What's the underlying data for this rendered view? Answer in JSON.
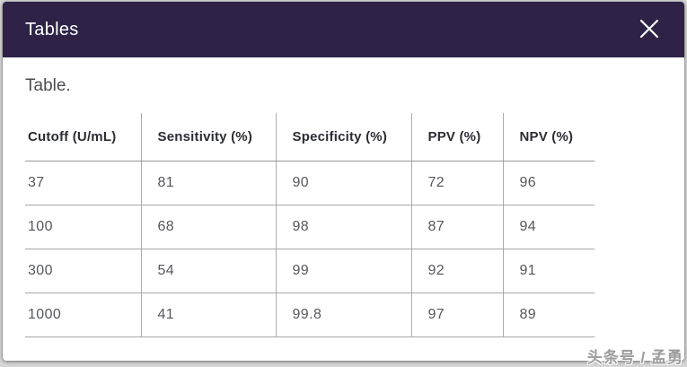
{
  "modal": {
    "title": "Tables",
    "close_icon": "x-close"
  },
  "caption": "Table.",
  "table": {
    "columns": [
      "Cutoff (U/mL)",
      "Sensitivity (%)",
      "Specificity (%)",
      "PPV (%)",
      "NPV (%)"
    ],
    "rows": [
      [
        "37",
        "81",
        "90",
        "72",
        "96"
      ],
      [
        "100",
        "68",
        "98",
        "87",
        "94"
      ],
      [
        "300",
        "54",
        "99",
        "92",
        "91"
      ],
      [
        "1000",
        "41",
        "99.8",
        "97",
        "89"
      ]
    ]
  },
  "watermark": "头条号 / 孟勇",
  "colors": {
    "header_bg": "#2e2347",
    "header_text": "#ffffff",
    "column_header_text": "#2b2d33",
    "cell_text": "#56585c",
    "grid_line": "#a6a6a6"
  }
}
